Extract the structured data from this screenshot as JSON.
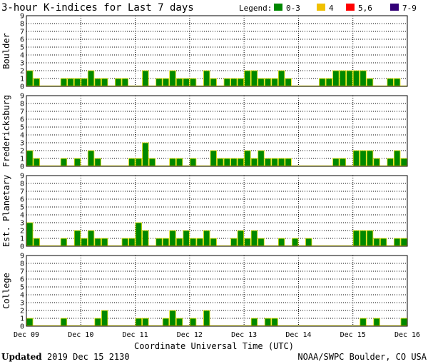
{
  "chart_data": {
    "type": "bar",
    "title": "3-hour K-indices for Last 7 days",
    "legend": {
      "label": "Legend:",
      "entries": [
        {
          "label": "0-3",
          "color": "#008800"
        },
        {
          "label": "4",
          "color": "#f0c000"
        },
        {
          "label": "5,6",
          "color": "#ff0000"
        },
        {
          "label": "7-9",
          "color": "#330077"
        }
      ]
    },
    "x_ticks": [
      "Dec 09",
      "Dec 10",
      "Dec 11",
      "Dec 12",
      "Dec 13",
      "Dec 14",
      "Dec 15",
      "Dec 16"
    ],
    "xlabel": "Coordinate Universal Time (UTC)",
    "ylim": [
      0,
      9
    ],
    "y_ticks": [
      "0",
      "1",
      "2",
      "3",
      "4",
      "5",
      "6",
      "7",
      "8",
      "9"
    ],
    "bar_color": "#008800",
    "bar_edge_color": "#e8e000",
    "grid": "dotted",
    "series": [
      {
        "name": "Boulder",
        "values": [
          2,
          1,
          0,
          0,
          0,
          1,
          1,
          1,
          1,
          2,
          1,
          1,
          0,
          1,
          1,
          0,
          0,
          2,
          0,
          1,
          1,
          2,
          1,
          1,
          1,
          0,
          2,
          1,
          0,
          1,
          1,
          1,
          2,
          2,
          1,
          1,
          1,
          2,
          1,
          0,
          0,
          0,
          0,
          1,
          1,
          2,
          2,
          2,
          2,
          2,
          1,
          0,
          0,
          1,
          1,
          0
        ]
      },
      {
        "name": "Fredericksburg",
        "values": [
          2,
          1,
          0,
          0,
          0,
          1,
          0,
          1,
          0,
          2,
          1,
          0,
          0,
          0,
          0,
          1,
          1,
          3,
          1,
          0,
          0,
          1,
          1,
          0,
          1,
          0,
          0,
          2,
          1,
          1,
          1,
          1,
          2,
          1,
          2,
          1,
          1,
          1,
          1,
          0,
          0,
          0,
          0,
          0,
          0,
          1,
          1,
          0,
          2,
          2,
          2,
          1,
          0,
          1,
          2,
          1
        ]
      },
      {
        "name": "Est. Planetary",
        "values": [
          3,
          1,
          0,
          0,
          0,
          1,
          0,
          2,
          1,
          2,
          1,
          1,
          0,
          0,
          1,
          1,
          3,
          2,
          0,
          1,
          1,
          2,
          1,
          2,
          1,
          1,
          2,
          1,
          0,
          0,
          1,
          2,
          1,
          2,
          1,
          0,
          0,
          1,
          0,
          1,
          0,
          1,
          0,
          0,
          0,
          0,
          0,
          0,
          2,
          2,
          2,
          1,
          1,
          0,
          1,
          1
        ]
      },
      {
        "name": "College",
        "values": [
          1,
          0,
          0,
          0,
          0,
          1,
          0,
          0,
          0,
          0,
          1,
          2,
          0,
          0,
          0,
          0,
          1,
          1,
          0,
          0,
          1,
          2,
          1,
          0,
          1,
          0,
          2,
          0,
          0,
          0,
          0,
          0,
          0,
          1,
          0,
          1,
          1,
          0,
          0,
          0,
          0,
          0,
          0,
          0,
          0,
          0,
          0,
          0,
          0,
          1,
          0,
          1,
          0,
          0,
          0,
          1
        ]
      }
    ]
  },
  "footer": {
    "updated_label": "Updated",
    "updated_value": "2019 Dec 15 2130",
    "source": "NOAA/SWPC Boulder, CO USA"
  }
}
